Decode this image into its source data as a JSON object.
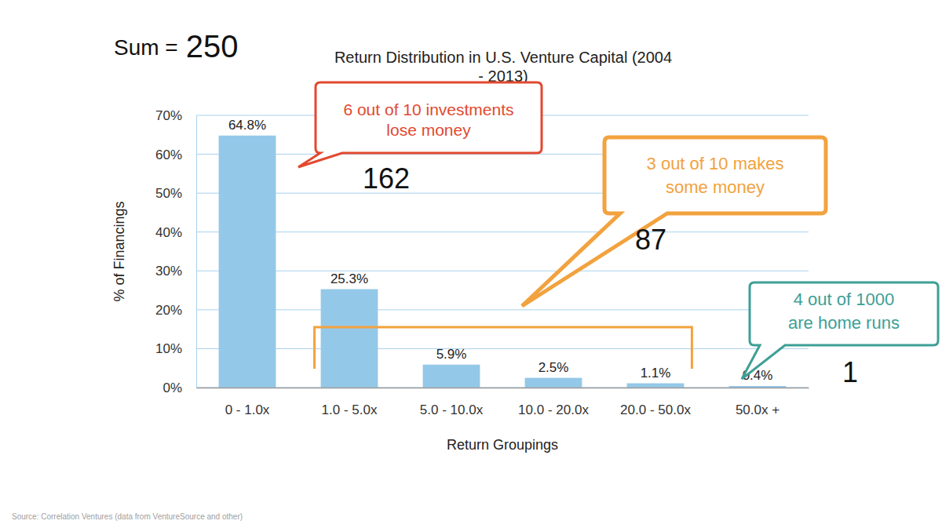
{
  "chart_data": {
    "type": "bar",
    "title": "Return Distribution in U.S. Venture Capital (2004 - 2013)",
    "x_label": "Return Groupings",
    "y_label": "% of Financings",
    "categories": [
      "0 - 1.0x",
      "1.0 - 5.0x",
      "5.0 - 10.0x",
      "10.0 - 20.0x",
      "20.0 - 50.0x",
      "50.0x +"
    ],
    "values": [
      64.8,
      25.3,
      5.9,
      2.5,
      1.1,
      0.4
    ],
    "value_labels": [
      "64.8%",
      "25.3%",
      "5.9%",
      "2.5%",
      "1.1%",
      "0.4%"
    ],
    "color": "#94c8e8",
    "ylim": [
      0,
      70
    ],
    "yticks": [
      {
        "value": 0,
        "label": "0%"
      },
      {
        "value": 10,
        "label": "10%"
      },
      {
        "value": 20,
        "label": "20%"
      },
      {
        "value": 30,
        "label": "30%"
      },
      {
        "value": 40,
        "label": "40%"
      },
      {
        "value": 50,
        "label": "50%"
      },
      {
        "value": 60,
        "label": "60%"
      },
      {
        "value": 70,
        "label": "70%"
      }
    ],
    "grid": true,
    "data_labels": true,
    "sum": {
      "label": "Sum =",
      "value": 250
    },
    "callouts": [
      {
        "lines": [
          "6 out of 10 investments",
          "lose money"
        ],
        "count": 162,
        "color": "#e2492f"
      },
      {
        "lines": [
          "3 out of 10 makes",
          "some money"
        ],
        "count": 87,
        "color": "#f2a23e"
      },
      {
        "lines": [
          "4 out of 1000",
          "are home runs"
        ],
        "count": 1,
        "color": "#3e9f96"
      }
    ],
    "source": "Source: Correlation Ventures (data from VentureSource and other)"
  }
}
